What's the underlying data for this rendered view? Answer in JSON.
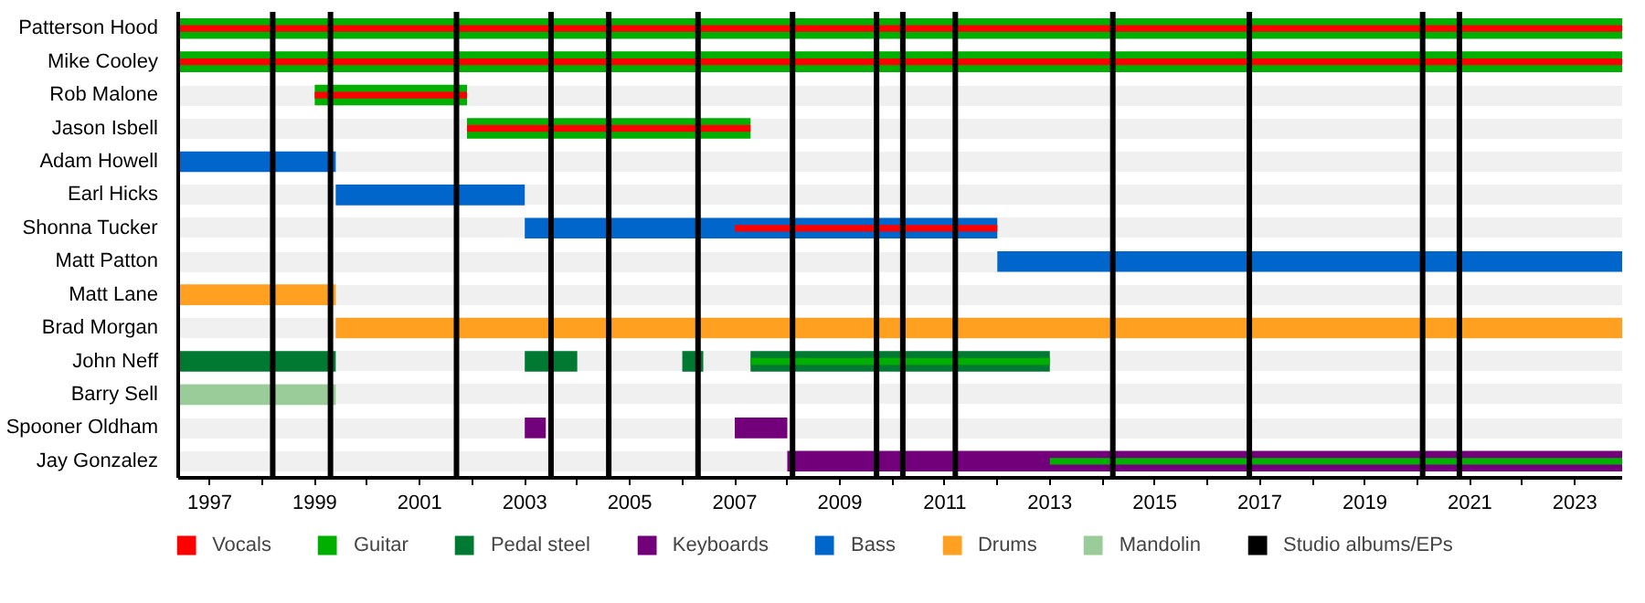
{
  "chart_data": {
    "type": "bar",
    "orientation": "horizontal",
    "categories": [
      "Patterson Hood",
      "Mike Cooley",
      "Rob Malone",
      "Jason Isbell",
      "Adam Howell",
      "Earl Hicks",
      "Shonna Tucker",
      "Matt Patton",
      "Matt Lane",
      "Brad Morgan",
      "John Neff",
      "Barry Sell",
      "Spooner Oldham",
      "Jay Gonzalez"
    ],
    "series": [
      {
        "name": "Vocals",
        "color": "#ff0000",
        "base": [
          1996.4,
          1996.4,
          1999.0,
          2001.9,
          null,
          null,
          2007.0,
          null,
          null,
          null,
          null,
          null,
          null,
          null
        ],
        "values": [
          27.5,
          27.5,
          2.9,
          5.4,
          null,
          null,
          5.0,
          null,
          null,
          null,
          null,
          null,
          null,
          null
        ]
      },
      {
        "name": "Guitar",
        "color": "#00b000",
        "base": [
          1996.4,
          1996.4,
          1999.0,
          2001.9,
          null,
          null,
          null,
          null,
          null,
          null,
          2007.3,
          null,
          null,
          2013.0
        ],
        "values": [
          27.5,
          27.5,
          2.9,
          5.4,
          null,
          null,
          null,
          null,
          null,
          null,
          5.7,
          null,
          null,
          10.9
        ]
      },
      {
        "name": "Pedal steel",
        "color": "#007a33",
        "base": [
          null,
          null,
          null,
          null,
          null,
          null,
          null,
          null,
          null,
          null,
          1996.4,
          null,
          null,
          null
        ],
        "values": [
          null,
          null,
          null,
          null,
          null,
          null,
          null,
          null,
          null,
          null,
          3.0,
          null,
          null,
          null
        ]
      },
      {
        "color": "#007a33",
        "base": [
          null,
          null,
          null,
          null,
          null,
          null,
          null,
          null,
          null,
          null,
          2003.0,
          null,
          null,
          null
        ],
        "values": [
          null,
          null,
          null,
          null,
          null,
          null,
          null,
          null,
          null,
          null,
          1.0,
          null,
          null,
          null
        ]
      },
      {
        "color": "#007a33",
        "base": [
          null,
          null,
          null,
          null,
          null,
          null,
          null,
          null,
          null,
          null,
          2006.0,
          null,
          null,
          null
        ],
        "values": [
          null,
          null,
          null,
          null,
          null,
          null,
          null,
          null,
          null,
          null,
          0.4,
          null,
          null,
          null
        ]
      },
      {
        "color": "#007a33",
        "base": [
          null,
          null,
          null,
          null,
          null,
          null,
          null,
          null,
          null,
          null,
          2007.3,
          null,
          null,
          null
        ],
        "values": [
          null,
          null,
          null,
          null,
          null,
          null,
          null,
          null,
          null,
          null,
          5.7,
          null,
          null,
          null
        ]
      },
      {
        "name": "Keyboards",
        "color": "#72007a",
        "base": [
          null,
          null,
          null,
          null,
          null,
          null,
          null,
          null,
          null,
          null,
          null,
          null,
          2003.0,
          2008.0
        ],
        "values": [
          null,
          null,
          null,
          null,
          null,
          null,
          null,
          null,
          null,
          null,
          null,
          null,
          0.4,
          15.9
        ]
      },
      {
        "color": "#72007a",
        "base": [
          null,
          null,
          null,
          null,
          null,
          null,
          null,
          null,
          null,
          null,
          null,
          null,
          2007.0,
          null
        ],
        "values": [
          null,
          null,
          null,
          null,
          null,
          null,
          null,
          null,
          null,
          null,
          null,
          null,
          1.0,
          null
        ]
      },
      {
        "name": "Bass",
        "color": "#0066cc",
        "base": [
          null,
          null,
          null,
          null,
          1996.4,
          1999.4,
          2003.0,
          2012.0,
          null,
          null,
          null,
          null,
          null,
          null
        ],
        "values": [
          null,
          null,
          null,
          null,
          3.0,
          3.6,
          9.0,
          11.9,
          null,
          null,
          null,
          null,
          null,
          null
        ]
      },
      {
        "name": "Drums",
        "color": "#ffa020",
        "base": [
          null,
          null,
          null,
          null,
          null,
          null,
          null,
          null,
          1996.4,
          1999.4,
          null,
          null,
          null,
          null
        ],
        "values": [
          null,
          null,
          null,
          null,
          null,
          null,
          null,
          null,
          3.0,
          24.5,
          null,
          null,
          null,
          null
        ]
      },
      {
        "name": "Mandolin",
        "color": "#99cc99",
        "base": [
          null,
          null,
          null,
          null,
          null,
          null,
          null,
          null,
          null,
          null,
          null,
          1996.4,
          null,
          null
        ],
        "values": [
          null,
          null,
          null,
          null,
          null,
          null,
          null,
          null,
          null,
          null,
          null,
          3.0,
          null,
          null
        ]
      }
    ],
    "ref_lines": [
      {
        "axis": "x",
        "value": 1998.2,
        "label": "Studio albums/EPs",
        "color": "#000000"
      },
      {
        "axis": "x",
        "value": 1999.3,
        "color": "#000000"
      },
      {
        "axis": "x",
        "value": 2001.7,
        "color": "#000000"
      },
      {
        "axis": "x",
        "value": 2003.5,
        "color": "#000000"
      },
      {
        "axis": "x",
        "value": 2004.6,
        "color": "#000000"
      },
      {
        "axis": "x",
        "value": 2006.3,
        "color": "#000000"
      },
      {
        "axis": "x",
        "value": 2008.1,
        "color": "#000000"
      },
      {
        "axis": "x",
        "value": 2009.7,
        "color": "#000000"
      },
      {
        "axis": "x",
        "value": 2010.2,
        "color": "#000000"
      },
      {
        "axis": "x",
        "value": 2011.2,
        "color": "#000000"
      },
      {
        "axis": "x",
        "value": 2014.2,
        "color": "#000000"
      },
      {
        "axis": "x",
        "value": 2016.8,
        "color": "#000000"
      },
      {
        "axis": "x",
        "value": 2020.1,
        "color": "#000000"
      },
      {
        "axis": "x",
        "value": 2020.8,
        "color": "#000000"
      }
    ],
    "xlim": [
      1996.4,
      2023.9
    ],
    "xticks": [
      1997,
      {
        "value": 1998,
        "label": null
      },
      1999,
      {
        "value": 2000,
        "label": null
      },
      2001,
      {
        "value": 2002,
        "label": null
      },
      2003,
      {
        "value": 2004,
        "label": null
      },
      2005,
      {
        "value": 2006,
        "label": null
      },
      2007,
      {
        "value": 2008,
        "label": null
      },
      2009,
      {
        "value": 2010,
        "label": null
      },
      2011,
      {
        "value": 2012,
        "label": null
      },
      2013,
      {
        "value": 2014,
        "label": null
      },
      2015,
      {
        "value": 2016,
        "label": null
      },
      2017,
      {
        "value": 2018,
        "label": null
      },
      2019,
      {
        "value": 2020,
        "label": null
      },
      2021,
      {
        "value": 2022,
        "label": null
      },
      2023
    ],
    "grid": "y",
    "legend": "bottom"
  }
}
